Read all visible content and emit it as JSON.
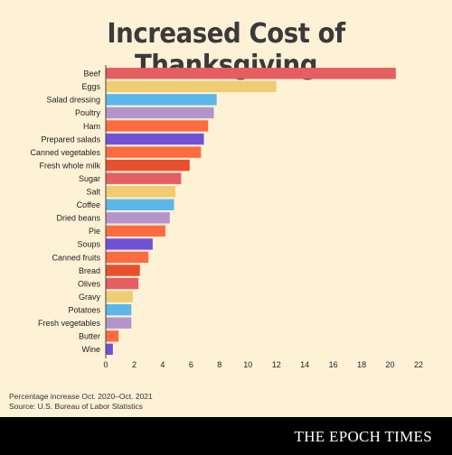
{
  "title": "Increased Cost of Thanksgiving",
  "note_line1": "Percentage increase Oct. 2020–Oct. 2021",
  "note_line2": "Source: U.S. Bureau of Labor Statistics",
  "brand": "THE EPOCH TIMES",
  "chart_data": {
    "type": "bar",
    "orientation": "horizontal",
    "categories": [
      "Beef",
      "Eggs",
      "Salad dressing",
      "Poultry",
      "Ham",
      "Prepared salads",
      "Canned vegetables",
      "Fresh whole milk",
      "Sugar",
      "Salt",
      "Coffee",
      "Dried beans",
      "Pie",
      "Soups",
      "Canned fruits",
      "Bread",
      "Olives",
      "Gravy",
      "Potatoes",
      "Fresh vegetables",
      "Butter",
      "Wine"
    ],
    "values": [
      20.4,
      12.0,
      7.8,
      7.6,
      7.2,
      6.9,
      6.7,
      5.9,
      5.3,
      4.9,
      4.8,
      4.5,
      4.2,
      3.3,
      3.0,
      2.4,
      2.3,
      1.9,
      1.8,
      1.8,
      0.9,
      0.5
    ],
    "colors": [
      "#e45e62",
      "#f0cc72",
      "#5cb6ea",
      "#b395cb",
      "#fd6b41",
      "#7152d6",
      "#fd6b41",
      "#e84f2e",
      "#e45e62",
      "#f0cc72",
      "#5cb6ea",
      "#b395cb",
      "#fd6b41",
      "#7152d6",
      "#fd6b41",
      "#e84f2e",
      "#e45e62",
      "#f0cc72",
      "#5cb6ea",
      "#b395cb",
      "#fd6b41",
      "#7152d6"
    ],
    "xticks": [
      0,
      2,
      4,
      6,
      8,
      10,
      12,
      14,
      16,
      18,
      20,
      22
    ],
    "xlim": [
      0,
      22
    ],
    "title": "Increased Cost of Thanksgiving",
    "xlabel": "",
    "ylabel": "",
    "grid": false
  }
}
